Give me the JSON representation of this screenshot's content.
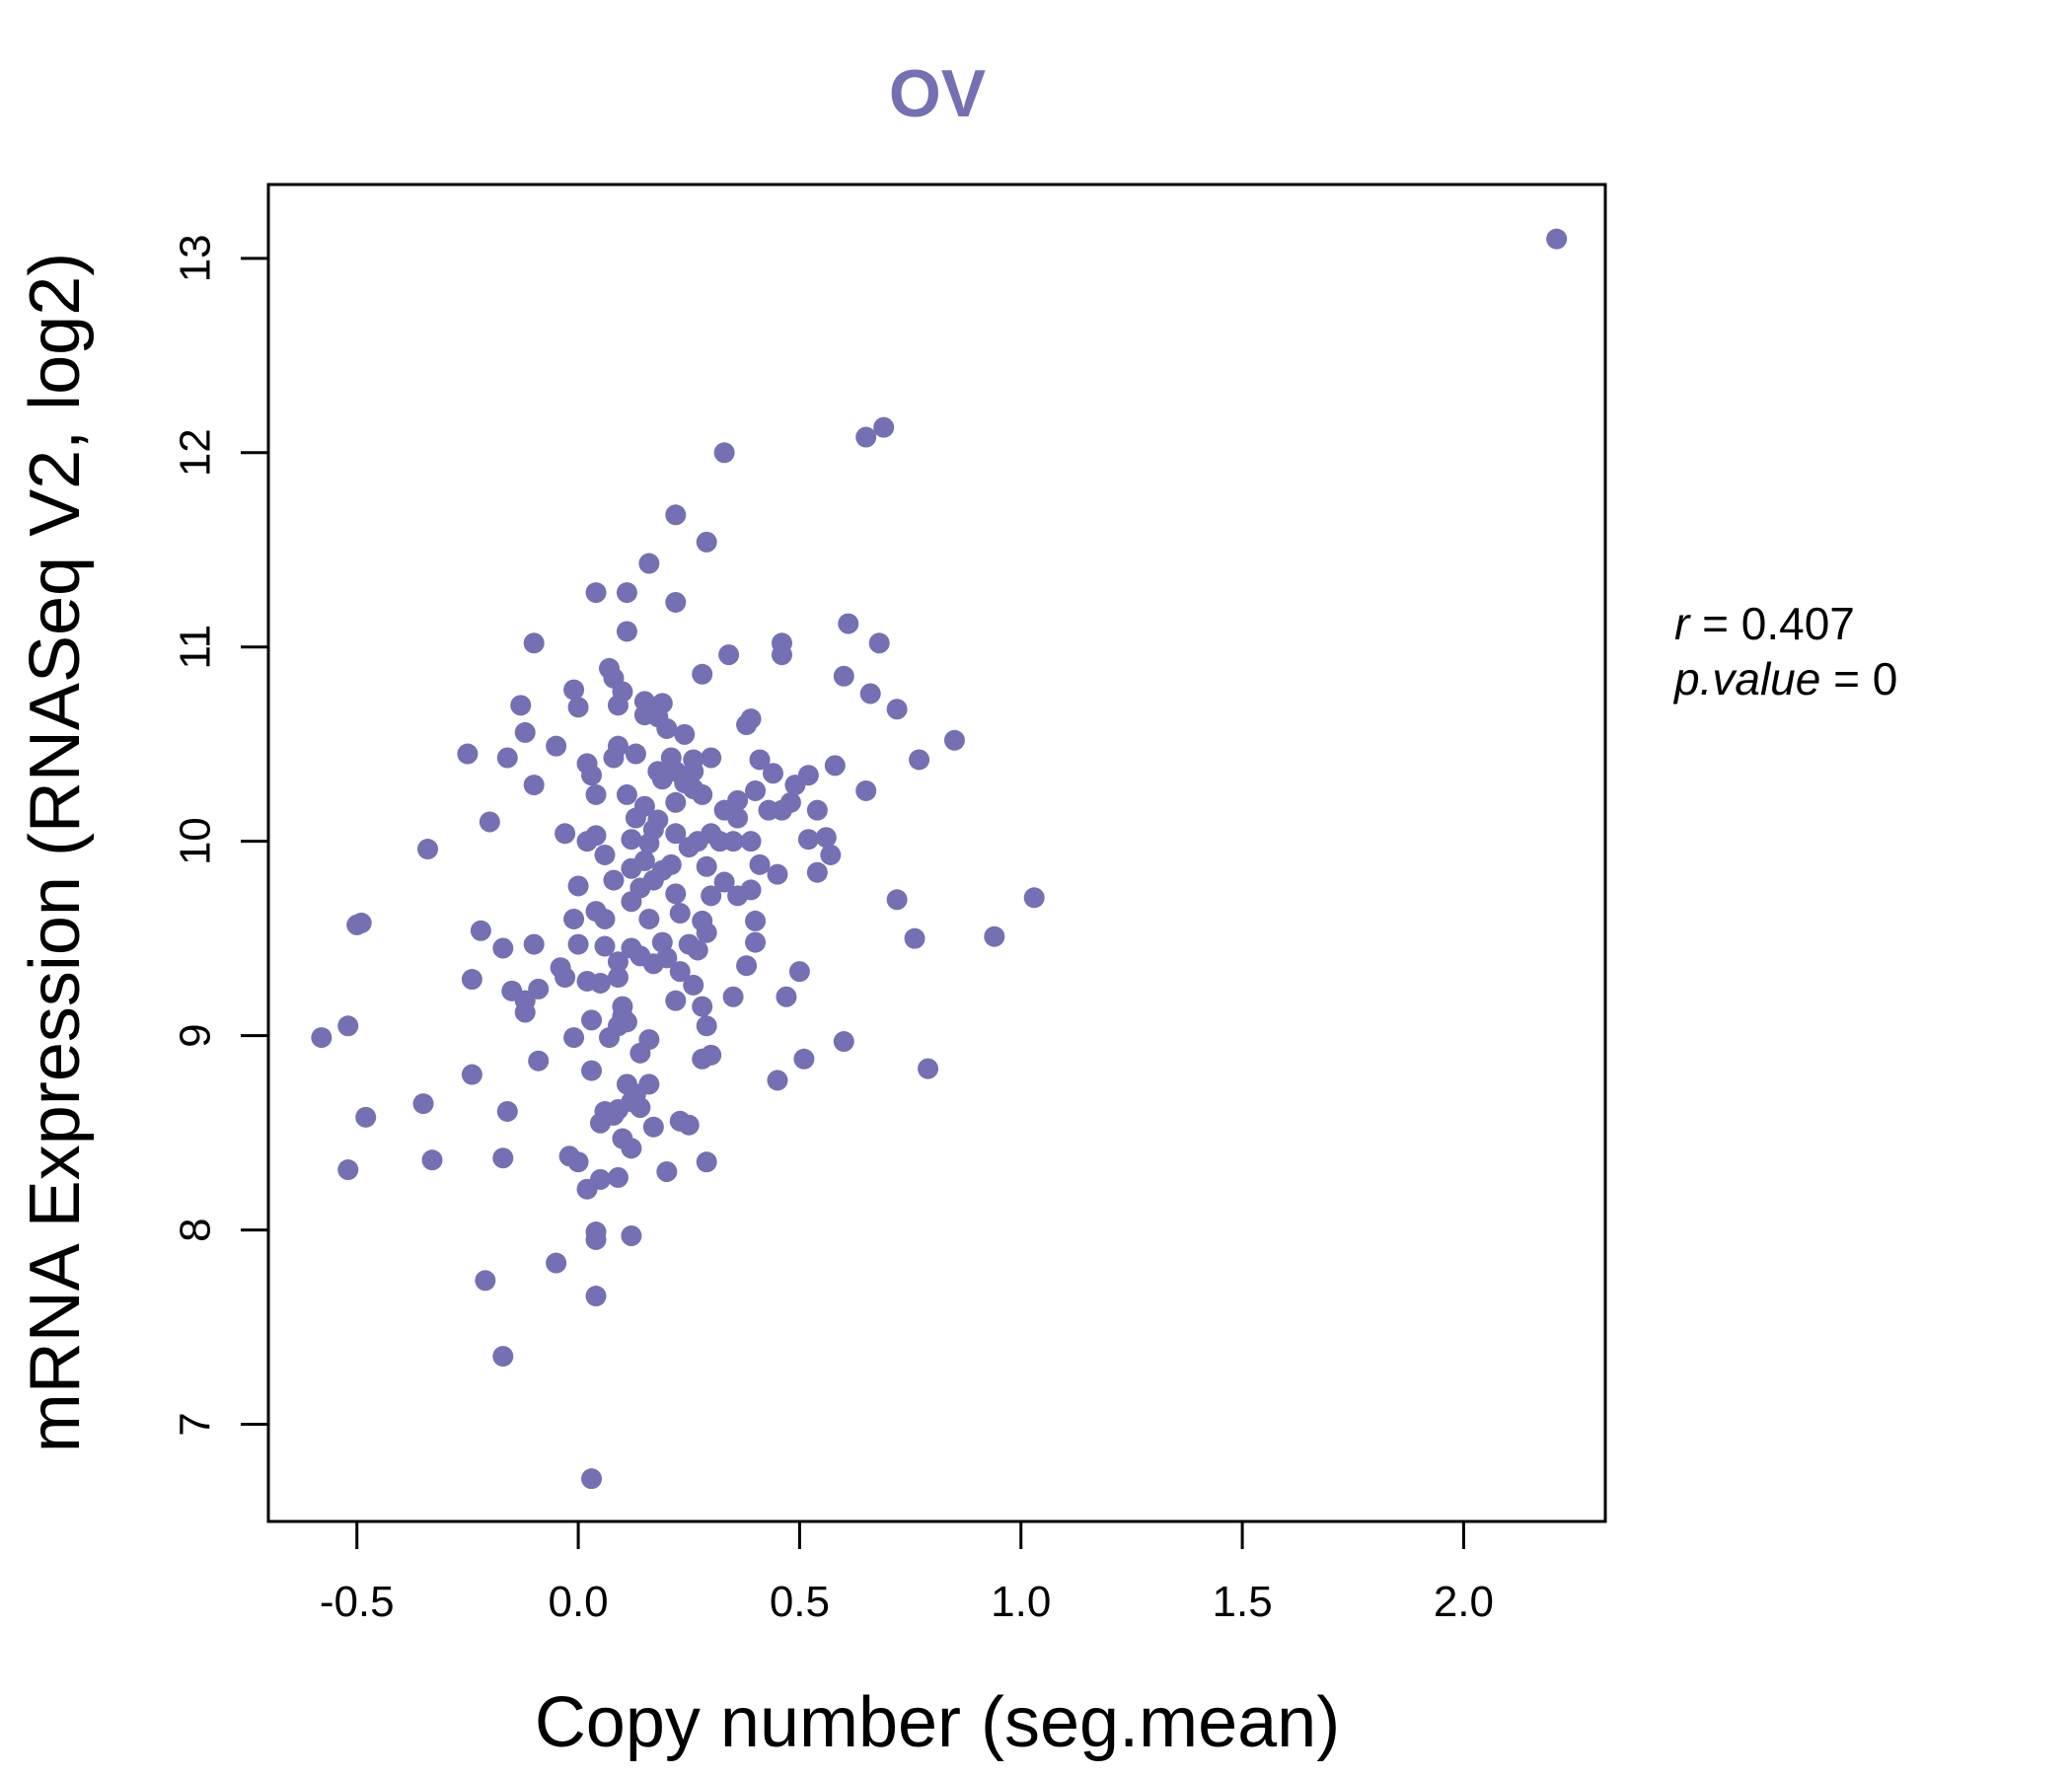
{
  "chart_data": {
    "type": "scatter",
    "title": "OV",
    "xlabel": "Copy number (seg.mean)",
    "ylabel": "mRNA Expression (RNASeq V2, log2)",
    "xlim": [
      -0.7,
      2.32
    ],
    "ylim": [
      6.5,
      13.38
    ],
    "x_ticks": [
      -0.5,
      0.0,
      0.5,
      1.0,
      1.5,
      2.0
    ],
    "x_tick_labels": [
      "-0.5",
      "0.0",
      "0.5",
      "1.0",
      "1.5",
      "2.0"
    ],
    "y_ticks": [
      7,
      8,
      9,
      10,
      11,
      12,
      13
    ],
    "y_tick_labels": [
      "7",
      "8",
      "9",
      "10",
      "11",
      "12",
      "13"
    ],
    "annotation": {
      "r_label": "r",
      "r_value": "0.407",
      "p_label": "p.value",
      "p_value": "0"
    },
    "colors": {
      "point": "#7570b3",
      "title": "#7570b3",
      "axis": "#000000"
    },
    "points": [
      [
        2.21,
        13.1
      ],
      [
        0.69,
        12.13
      ],
      [
        0.65,
        12.08
      ],
      [
        0.33,
        12.0
      ],
      [
        0.22,
        11.68
      ],
      [
        0.29,
        11.54
      ],
      [
        0.16,
        11.43
      ],
      [
        0.04,
        11.28
      ],
      [
        0.11,
        11.28
      ],
      [
        0.22,
        11.23
      ],
      [
        0.11,
        11.08
      ],
      [
        0.61,
        11.12
      ],
      [
        0.46,
        11.02
      ],
      [
        0.68,
        11.02
      ],
      [
        -0.1,
        11.02
      ],
      [
        0.34,
        10.96
      ],
      [
        0.46,
        10.96
      ],
      [
        0.07,
        10.89
      ],
      [
        0.28,
        10.86
      ],
      [
        0.08,
        10.84
      ],
      [
        0.6,
        10.85
      ],
      [
        -0.01,
        10.78
      ],
      [
        0.1,
        10.77
      ],
      [
        0.66,
        10.76
      ],
      [
        0.15,
        10.72
      ],
      [
        0.19,
        10.71
      ],
      [
        0.09,
        10.7
      ],
      [
        -0.13,
        10.7
      ],
      [
        0.0,
        10.69
      ],
      [
        0.72,
        10.68
      ],
      [
        0.15,
        10.65
      ],
      [
        0.18,
        10.64
      ],
      [
        0.39,
        10.63
      ],
      [
        0.38,
        10.6
      ],
      [
        0.2,
        10.58
      ],
      [
        -0.12,
        10.56
      ],
      [
        0.24,
        10.55
      ],
      [
        0.85,
        10.52
      ],
      [
        -0.05,
        10.49
      ],
      [
        0.09,
        10.49
      ],
      [
        0.13,
        10.45
      ],
      [
        -0.25,
        10.45
      ],
      [
        0.08,
        10.43
      ],
      [
        0.21,
        10.43
      ],
      [
        -0.16,
        10.43
      ],
      [
        0.26,
        10.42
      ],
      [
        0.3,
        10.43
      ],
      [
        0.41,
        10.42
      ],
      [
        0.77,
        10.42
      ],
      [
        0.02,
        10.4
      ],
      [
        0.18,
        10.36
      ],
      [
        0.22,
        10.36
      ],
      [
        0.26,
        10.36
      ],
      [
        0.44,
        10.35
      ],
      [
        0.52,
        10.34
      ],
      [
        0.58,
        10.39
      ],
      [
        0.03,
        10.34
      ],
      [
        0.19,
        10.32
      ],
      [
        0.24,
        10.3
      ],
      [
        0.49,
        10.29
      ],
      [
        -0.1,
        10.29
      ],
      [
        0.26,
        10.27
      ],
      [
        0.4,
        10.26
      ],
      [
        0.65,
        10.26
      ],
      [
        0.04,
        10.24
      ],
      [
        0.11,
        10.24
      ],
      [
        0.28,
        10.24
      ],
      [
        0.22,
        10.2
      ],
      [
        0.36,
        10.21
      ],
      [
        0.48,
        10.2
      ],
      [
        0.15,
        10.18
      ],
      [
        0.33,
        10.16
      ],
      [
        0.43,
        10.16
      ],
      [
        0.46,
        10.16
      ],
      [
        0.54,
        10.16
      ],
      [
        0.13,
        10.12
      ],
      [
        0.18,
        10.11
      ],
      [
        0.36,
        10.12
      ],
      [
        -0.2,
        10.1
      ],
      [
        0.17,
        10.06
      ],
      [
        0.22,
        10.04
      ],
      [
        0.3,
        10.04
      ],
      [
        0.04,
        10.03
      ],
      [
        -0.03,
        10.04
      ],
      [
        0.12,
        10.01
      ],
      [
        0.27,
        10.0
      ],
      [
        0.32,
        10.0
      ],
      [
        0.35,
        10.0
      ],
      [
        0.39,
        10.0
      ],
      [
        0.52,
        10.01
      ],
      [
        0.56,
        10.02
      ],
      [
        0.02,
        10.0
      ],
      [
        0.16,
        9.99
      ],
      [
        0.25,
        9.97
      ],
      [
        -0.34,
        9.96
      ],
      [
        0.57,
        9.93
      ],
      [
        0.06,
        9.93
      ],
      [
        0.15,
        9.9
      ],
      [
        0.21,
        9.88
      ],
      [
        0.12,
        9.86
      ],
      [
        0.19,
        9.85
      ],
      [
        0.29,
        9.87
      ],
      [
        0.41,
        9.88
      ],
      [
        0.45,
        9.83
      ],
      [
        0.54,
        9.84
      ],
      [
        0.08,
        9.8
      ],
      [
        0.17,
        9.8
      ],
      [
        0.33,
        9.79
      ],
      [
        -0.0,
        9.77
      ],
      [
        0.14,
        9.76
      ],
      [
        0.22,
        9.73
      ],
      [
        0.39,
        9.75
      ],
      [
        0.3,
        9.72
      ],
      [
        0.36,
        9.72
      ],
      [
        0.12,
        9.69
      ],
      [
        0.72,
        9.7
      ],
      [
        1.03,
        9.71
      ],
      [
        0.04,
        9.64
      ],
      [
        0.23,
        9.63
      ],
      [
        0.16,
        9.6
      ],
      [
        0.06,
        9.6
      ],
      [
        0.28,
        9.59
      ],
      [
        0.4,
        9.59
      ],
      [
        -0.01,
        9.6
      ],
      [
        -0.49,
        9.58
      ],
      [
        -0.5,
        9.57
      ],
      [
        0.29,
        9.53
      ],
      [
        -0.22,
        9.54
      ],
      [
        0.94,
        9.51
      ],
      [
        0.76,
        9.5
      ],
      [
        0.19,
        9.48
      ],
      [
        0.25,
        9.47
      ],
      [
        0.4,
        9.48
      ],
      [
        0.12,
        9.45
      ],
      [
        0.0,
        9.47
      ],
      [
        0.06,
        9.46
      ],
      [
        -0.1,
        9.47
      ],
      [
        -0.17,
        9.45
      ],
      [
        0.27,
        9.44
      ],
      [
        0.14,
        9.41
      ],
      [
        0.2,
        9.4
      ],
      [
        0.09,
        9.38
      ],
      [
        0.17,
        9.37
      ],
      [
        0.38,
        9.36
      ],
      [
        -0.04,
        9.35
      ],
      [
        0.23,
        9.33
      ],
      [
        0.5,
        9.33
      ],
      [
        -0.03,
        9.3
      ],
      [
        0.09,
        9.3
      ],
      [
        0.02,
        9.28
      ],
      [
        0.05,
        9.27
      ],
      [
        -0.24,
        9.29
      ],
      [
        0.26,
        9.26
      ],
      [
        -0.09,
        9.24
      ],
      [
        -0.15,
        9.23
      ],
      [
        0.35,
        9.2
      ],
      [
        0.47,
        9.2
      ],
      [
        0.22,
        9.18
      ],
      [
        -0.12,
        9.18
      ],
      [
        0.1,
        9.15
      ],
      [
        0.28,
        9.15
      ],
      [
        -0.12,
        9.12
      ],
      [
        0.1,
        9.1
      ],
      [
        0.03,
        9.08
      ],
      [
        0.29,
        9.05
      ],
      [
        -0.52,
        9.05
      ],
      [
        0.09,
        9.05
      ],
      [
        0.11,
        9.07
      ],
      [
        -0.58,
        8.99
      ],
      [
        -0.01,
        8.99
      ],
      [
        0.07,
        8.99
      ],
      [
        0.16,
        8.98
      ],
      [
        0.6,
        8.97
      ],
      [
        0.14,
        8.91
      ],
      [
        0.3,
        8.9
      ],
      [
        0.28,
        8.88
      ],
      [
        0.51,
        8.88
      ],
      [
        -0.09,
        8.87
      ],
      [
        0.03,
        8.82
      ],
      [
        0.79,
        8.83
      ],
      [
        -0.24,
        8.8
      ],
      [
        0.45,
        8.77
      ],
      [
        0.16,
        8.75
      ],
      [
        0.11,
        8.75
      ],
      [
        0.13,
        8.7
      ],
      [
        0.12,
        8.66
      ],
      [
        0.14,
        8.63
      ],
      [
        0.09,
        8.62
      ],
      [
        0.06,
        8.61
      ],
      [
        -0.16,
        8.61
      ],
      [
        0.08,
        8.59
      ],
      [
        -0.48,
        8.58
      ],
      [
        0.23,
        8.56
      ],
      [
        0.25,
        8.54
      ],
      [
        0.05,
        8.55
      ],
      [
        0.17,
        8.53
      ],
      [
        0.1,
        8.47
      ],
      [
        0.12,
        8.42
      ],
      [
        -0.35,
        8.65
      ],
      [
        -0.33,
        8.36
      ],
      [
        -0.17,
        8.37
      ],
      [
        -0.02,
        8.38
      ],
      [
        0.0,
        8.35
      ],
      [
        -0.52,
        8.31
      ],
      [
        0.2,
        8.3
      ],
      [
        0.29,
        8.35
      ],
      [
        0.09,
        8.27
      ],
      [
        0.05,
        8.26
      ],
      [
        0.02,
        8.21
      ],
      [
        0.04,
        7.99
      ],
      [
        0.12,
        7.97
      ],
      [
        0.04,
        7.95
      ],
      [
        -0.05,
        7.83
      ],
      [
        -0.21,
        7.74
      ],
      [
        0.04,
        7.66
      ],
      [
        -0.17,
        7.35
      ],
      [
        0.03,
        6.72
      ]
    ]
  }
}
